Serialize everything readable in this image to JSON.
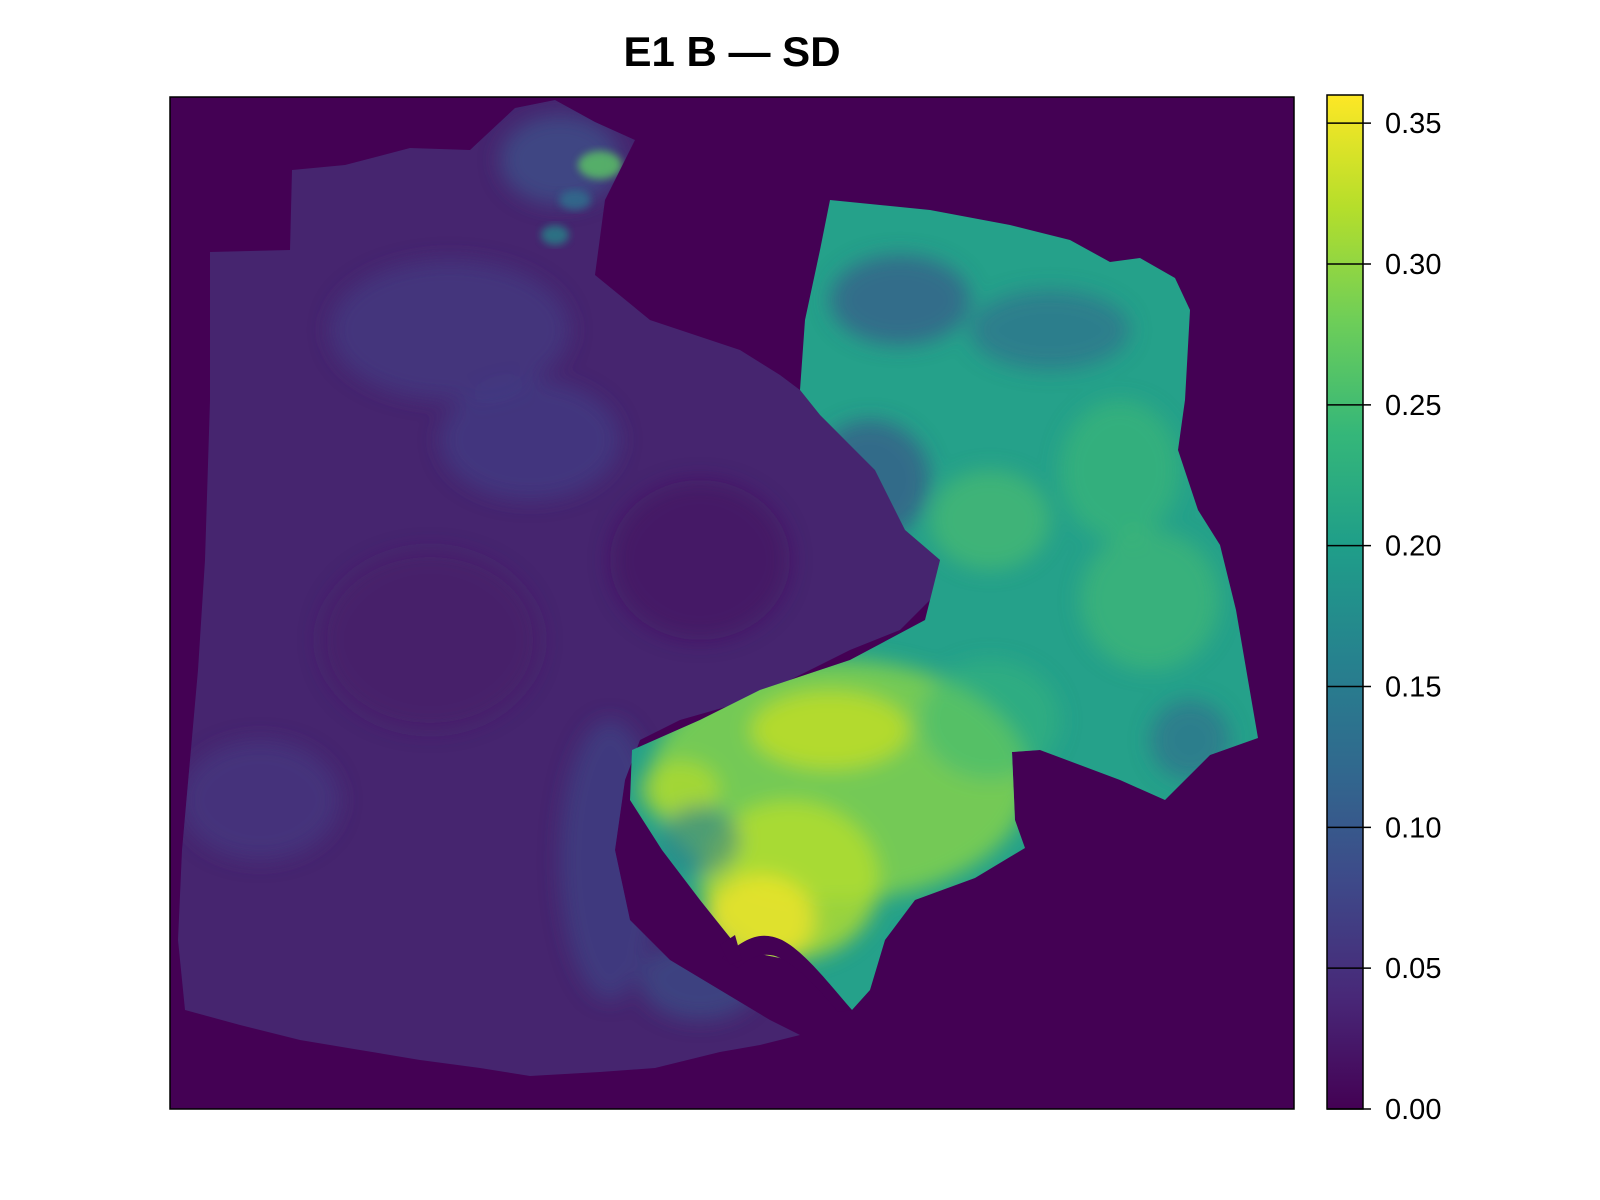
{
  "chart_data": {
    "type": "heatmap",
    "title": "E1 B — SD",
    "xlabel": "",
    "ylabel": "",
    "legend": {
      "placement": "right",
      "range": [
        0.0,
        0.36
      ],
      "ticks": [
        0.0,
        0.05,
        0.1,
        0.15,
        0.2,
        0.25,
        0.3,
        0.35
      ],
      "tick_labels": [
        "0.00",
        "0.05",
        "0.10",
        "0.15",
        "0.20",
        "0.25",
        "0.30",
        "0.35"
      ],
      "colormap": "viridis",
      "colors": [
        "#440154",
        "#482878",
        "#3e4989",
        "#31688e",
        "#26828e",
        "#1f9e89",
        "#35b779",
        "#6ece58",
        "#b5de2b",
        "#fde725"
      ]
    },
    "background_value": 0.0,
    "regions": [
      {
        "name": "western lobe",
        "approx_value": 0.03
      },
      {
        "name": "northern strip",
        "approx_value": 0.05
      },
      {
        "name": "central rough band",
        "approx_value": 0.06
      },
      {
        "name": "northeast block",
        "approx_value": 0.2
      },
      {
        "name": "southern high zone",
        "approx_value": 0.28
      },
      {
        "name": "peak hotspot",
        "approx_value": 0.34
      }
    ]
  },
  "colors": {
    "background": "#440154",
    "frame": "#000000"
  }
}
